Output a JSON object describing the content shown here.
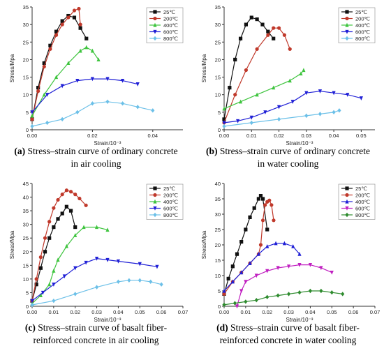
{
  "colors": {
    "25": "#111111",
    "200": "#c0392b",
    "400": "#3ec43e",
    "600": "#1f1fd6",
    "800": "#6cc0e8",
    "800_green": "#2e8b2e",
    "600_magenta": "#c01ec0"
  },
  "chart_data": [
    {
      "id": "a",
      "type": "line",
      "caption_letter": "(a)",
      "caption_line1": " Stress–strain curve of ordinary concrete",
      "caption_line2": "in air cooling",
      "xlabel": "Strain/10⁻³",
      "ylabel": "Stress/Mpa",
      "xlim": [
        0,
        0.05
      ],
      "ylim": [
        0,
        35
      ],
      "xticks": [
        0,
        0.02,
        0.04
      ],
      "xtick_labels": [
        "0.00",
        "0.02",
        "0.04"
      ],
      "yticks": [
        0,
        5,
        10,
        15,
        20,
        25,
        30,
        35
      ],
      "legend_position": "top-right",
      "series": [
        {
          "name": "25℃",
          "color": "25",
          "marker": "square",
          "x": [
            0,
            0.002,
            0.004,
            0.006,
            0.008,
            0.01,
            0.012,
            0.014,
            0.016,
            0.018
          ],
          "y": [
            3,
            12,
            19,
            24,
            28,
            31,
            32.5,
            32,
            29,
            26
          ]
        },
        {
          "name": "200℃",
          "color": "200",
          "marker": "circle",
          "x": [
            0,
            0.002,
            0.004,
            0.006,
            0.008,
            0.01,
            0.012,
            0.014,
            0.0155,
            0.016
          ],
          "y": [
            3,
            11,
            18,
            23,
            27,
            30,
            32,
            34,
            34.5,
            30
          ]
        },
        {
          "name": "400℃",
          "color": "400",
          "marker": "triangle-up",
          "x": [
            0,
            0.004,
            0.008,
            0.012,
            0.016,
            0.018,
            0.02,
            0.022
          ],
          "y": [
            4,
            10,
            15,
            19,
            22.5,
            23.5,
            22.5,
            20
          ]
        },
        {
          "name": "600℃",
          "color": "600",
          "marker": "triangle-down",
          "x": [
            0,
            0.005,
            0.01,
            0.015,
            0.02,
            0.025,
            0.03,
            0.035
          ],
          "y": [
            5,
            10,
            12.5,
            14,
            14.5,
            14.5,
            14,
            13
          ]
        },
        {
          "name": "800℃",
          "color": "800",
          "marker": "diamond",
          "x": [
            0,
            0.005,
            0.01,
            0.015,
            0.02,
            0.025,
            0.03,
            0.035,
            0.04
          ],
          "y": [
            1,
            2,
            3,
            5,
            7.5,
            8,
            7.5,
            6.5,
            5.5
          ]
        }
      ]
    },
    {
      "id": "b",
      "type": "line",
      "caption_letter": "(b)",
      "caption_line1": " Stress–strain curve of ordinary concrete",
      "caption_line2": "in water cooling",
      "xlabel": "Strain/10⁻³",
      "ylabel": "Stress/Mpa",
      "xlim": [
        0,
        0.055
      ],
      "ylim": [
        0,
        35
      ],
      "xticks": [
        0,
        0.01,
        0.02,
        0.03,
        0.04,
        0.05
      ],
      "xtick_labels": [
        "0.00",
        "0.01",
        "0.02",
        "0.03",
        "0.04",
        "0.05"
      ],
      "yticks": [
        0,
        5,
        10,
        15,
        20,
        25,
        30,
        35
      ],
      "legend_position": "top-right",
      "series": [
        {
          "name": "25℃",
          "color": "25",
          "marker": "square",
          "x": [
            0,
            0.002,
            0.004,
            0.006,
            0.008,
            0.01,
            0.012,
            0.014,
            0.016,
            0.018
          ],
          "y": [
            3,
            12,
            20,
            26,
            30,
            32,
            31.5,
            30,
            28,
            26
          ]
        },
        {
          "name": "200℃",
          "color": "200",
          "marker": "circle",
          "x": [
            0,
            0.004,
            0.008,
            0.012,
            0.016,
            0.018,
            0.02,
            0.022,
            0.024
          ],
          "y": [
            2,
            10,
            17,
            23,
            27,
            29,
            29,
            27,
            23
          ]
        },
        {
          "name": "400℃",
          "color": "400",
          "marker": "triangle-up",
          "x": [
            0,
            0.006,
            0.012,
            0.018,
            0.024,
            0.028,
            0.029
          ],
          "y": [
            6,
            8,
            10,
            12,
            14,
            16,
            17
          ]
        },
        {
          "name": "600℃",
          "color": "600",
          "marker": "triangle-down",
          "x": [
            0,
            0.005,
            0.01,
            0.015,
            0.02,
            0.025,
            0.03,
            0.035,
            0.04,
            0.045,
            0.05
          ],
          "y": [
            2,
            2.5,
            3.5,
            5,
            6.5,
            8,
            10.5,
            11,
            10.5,
            10,
            9
          ]
        },
        {
          "name": "800℃",
          "color": "800",
          "marker": "diamond",
          "x": [
            0,
            0.01,
            0.02,
            0.03,
            0.035,
            0.04,
            0.042
          ],
          "y": [
            1,
            2,
            3,
            4,
            4.5,
            5,
            5.5
          ]
        }
      ]
    },
    {
      "id": "c",
      "type": "line",
      "caption_letter": "(c)",
      "caption_line1": " Stress–strain curve of basalt fiber-",
      "caption_line2": "reinforced concrete in air cooling",
      "xlabel": "Strain/10⁻³",
      "ylabel": "Stress/Mpa",
      "xlim": [
        0,
        0.07
      ],
      "ylim": [
        0,
        45
      ],
      "xticks": [
        0,
        0.01,
        0.02,
        0.03,
        0.04,
        0.05,
        0.06,
        0.07
      ],
      "xtick_labels": [
        "0.00",
        "0.01",
        "0.02",
        "0.03",
        "0.04",
        "0.05",
        "0.06",
        "0.07"
      ],
      "yticks": [
        0,
        5,
        10,
        15,
        20,
        25,
        30,
        35,
        40,
        45
      ],
      "legend_position": "top-right",
      "series": [
        {
          "name": "25℃",
          "color": "25",
          "marker": "square",
          "x": [
            0,
            0.002,
            0.004,
            0.006,
            0.008,
            0.01,
            0.012,
            0.014,
            0.016,
            0.018,
            0.02
          ],
          "y": [
            2,
            8,
            14,
            20,
            25,
            29,
            32,
            34,
            36.5,
            35,
            29
          ]
        },
        {
          "name": "200℃",
          "color": "200",
          "marker": "circle",
          "x": [
            0,
            0.002,
            0.004,
            0.006,
            0.008,
            0.01,
            0.012,
            0.014,
            0.016,
            0.018,
            0.02,
            0.022,
            0.025
          ],
          "y": [
            2,
            10,
            18,
            25,
            31,
            36,
            39,
            41,
            42.5,
            42,
            41,
            39.5,
            37
          ]
        },
        {
          "name": "400℃",
          "color": "400",
          "marker": "triangle-up",
          "x": [
            0,
            0.004,
            0.008,
            0.01,
            0.012,
            0.016,
            0.02,
            0.024,
            0.03,
            0.035
          ],
          "y": [
            1,
            4,
            8,
            13,
            17,
            22,
            26,
            29,
            29,
            28
          ]
        },
        {
          "name": "600℃",
          "color": "600",
          "marker": "triangle-down",
          "x": [
            0,
            0.005,
            0.01,
            0.015,
            0.02,
            0.025,
            0.03,
            0.035,
            0.04,
            0.05,
            0.058
          ],
          "y": [
            2,
            5,
            8,
            11,
            14,
            16,
            17.5,
            17,
            16.5,
            15.5,
            14.5
          ]
        },
        {
          "name": "800℃",
          "color": "800",
          "marker": "diamond",
          "x": [
            0,
            0.01,
            0.02,
            0.03,
            0.04,
            0.045,
            0.05,
            0.055,
            0.06
          ],
          "y": [
            0.5,
            2,
            4.5,
            7,
            9,
            9.5,
            9.5,
            9,
            8
          ]
        }
      ]
    },
    {
      "id": "d",
      "type": "line",
      "caption_letter": "(d)",
      "caption_line1": " Stress–strain curve of basalt fiber-",
      "caption_line2": "reinforced concrete in water cooling",
      "xlabel": "Strain/10⁻³",
      "ylabel": "Stress/Mpa",
      "xlim": [
        0,
        0.07
      ],
      "ylim": [
        0,
        40
      ],
      "xticks": [
        0,
        0.01,
        0.02,
        0.03,
        0.04,
        0.05,
        0.06,
        0.07
      ],
      "xtick_labels": [
        "0.00",
        "0.01",
        "0.02",
        "0.03",
        "0.04",
        "0.05",
        "0.06",
        "0.07"
      ],
      "yticks": [
        0,
        5,
        10,
        15,
        20,
        25,
        30,
        35,
        40
      ],
      "legend_position": "top-right",
      "series": [
        {
          "name": "25℃",
          "color": "25",
          "marker": "square",
          "x": [
            0,
            0.002,
            0.004,
            0.006,
            0.008,
            0.01,
            0.012,
            0.014,
            0.016,
            0.017,
            0.018,
            0.02
          ],
          "y": [
            4,
            9,
            13,
            17,
            21,
            25,
            29,
            32,
            35,
            36,
            35,
            25
          ]
        },
        {
          "name": "200℃",
          "color": "200",
          "marker": "circle",
          "x": [
            0,
            0.004,
            0.008,
            0.012,
            0.016,
            0.017,
            0.018,
            0.019,
            0.02,
            0.021,
            0.022,
            0.023
          ],
          "y": [
            4,
            8,
            11,
            14,
            17,
            20,
            28,
            33,
            34,
            34.5,
            33,
            28
          ]
        },
        {
          "name": "400℃",
          "color": "600",
          "marker": "triangle-up",
          "x": [
            0,
            0.004,
            0.008,
            0.012,
            0.016,
            0.02,
            0.024,
            0.028,
            0.032,
            0.035
          ],
          "y": [
            5,
            8,
            11,
            14,
            17,
            19.5,
            20.5,
            20.5,
            19.5,
            17
          ]
        },
        {
          "name": "600℃",
          "color": "600_magenta",
          "marker": "triangle-down",
          "x": [
            0.006,
            0.008,
            0.01,
            0.015,
            0.02,
            0.025,
            0.03,
            0.035,
            0.04,
            0.045,
            0.05
          ],
          "y": [
            0,
            5,
            8,
            10,
            11.5,
            12.5,
            13,
            13.5,
            13.5,
            12.5,
            11
          ]
        },
        {
          "name": "800℃",
          "color": "800_green",
          "marker": "diamond",
          "x": [
            0,
            0.005,
            0.01,
            0.015,
            0.02,
            0.025,
            0.03,
            0.035,
            0.04,
            0.045,
            0.05,
            0.055
          ],
          "y": [
            0.5,
            1,
            1.5,
            2,
            3,
            3.5,
            4,
            4.5,
            5,
            5,
            4.5,
            4
          ]
        }
      ]
    }
  ]
}
